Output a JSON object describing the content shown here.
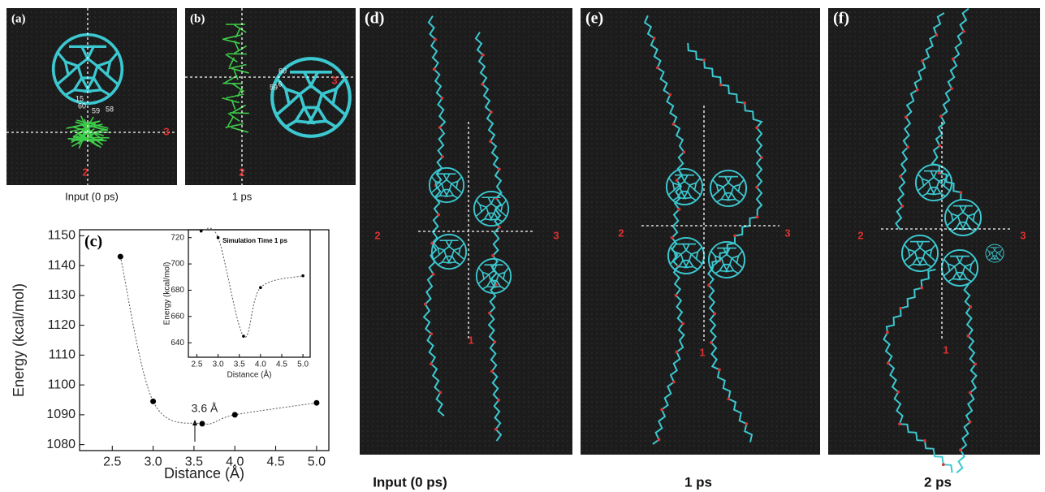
{
  "panels": [
    {
      "label": "(a)",
      "caption": "Input (0 ps)",
      "axis_labels": [
        "2",
        "3"
      ],
      "atom_labels": [
        "15",
        "60",
        "59",
        "58"
      ]
    },
    {
      "label": "(b)",
      "caption": "1 ps",
      "axis_labels": [
        "2",
        "3"
      ],
      "atom_labels": [
        "60",
        "59",
        "6"
      ]
    },
    {
      "label": "(d)",
      "caption": "Input (0 ps)",
      "axis_labels": [
        "2",
        "3",
        "1"
      ]
    },
    {
      "label": "(e)",
      "caption": "1 ps",
      "axis_labels": [
        "2",
        "3",
        "1"
      ]
    },
    {
      "label": "(f)",
      "caption": "2 ps",
      "axis_labels": [
        "2",
        "3",
        "1"
      ]
    }
  ],
  "chart_data": [
    {
      "type": "scatter",
      "label": "(c)",
      "x_label": "Distance (Å)",
      "y_label": "Energy (kcal/mol)",
      "x": [
        2.6,
        3.0,
        3.6,
        4.0,
        5.0
      ],
      "values": [
        1143,
        1094.5,
        1087,
        1090,
        1094
      ],
      "color": "#000000",
      "annotation": "3.6 Å",
      "xlim": [
        2.1,
        5.15
      ],
      "ylim": [
        1078,
        1152
      ],
      "xticks": [
        2.5,
        {
          "value": 3,
          "label": "3.0"
        },
        3.5,
        {
          "value": 4,
          "label": "4.0"
        },
        4.5,
        {
          "value": 5,
          "label": "5.0"
        }
      ],
      "yticks": [
        1080,
        1090,
        1100,
        1110,
        1120,
        1130,
        1140,
        1150
      ]
    },
    {
      "type": "scatter",
      "title": "Simulation Time 1 ps",
      "x_label": "Distance (Å)",
      "y_label": "Energy (kcal/mol)",
      "x": [
        2.6,
        3.0,
        3.6,
        4.0,
        5.0
      ],
      "values": [
        725,
        720,
        645,
        682,
        691
      ],
      "color": "#000000",
      "xlim": [
        2.3,
        5.17
      ],
      "ylim": [
        629,
        726
      ],
      "xticks": [
        2.5,
        {
          "value": 3,
          "label": "3.0"
        },
        3.5,
        {
          "value": 4,
          "label": "4.0"
        },
        4.5,
        {
          "value": 5,
          "label": "5.0"
        }
      ],
      "yticks": [
        640,
        660,
        680,
        700,
        720
      ]
    }
  ]
}
